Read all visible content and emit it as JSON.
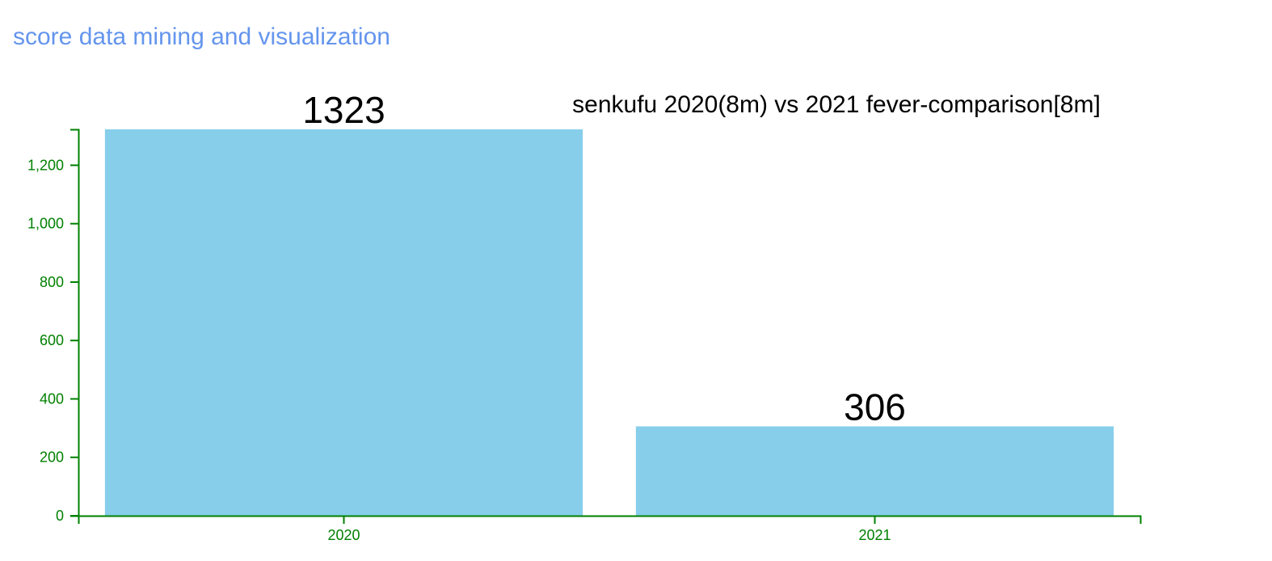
{
  "page": {
    "heading": "score data mining and visualization"
  },
  "colors": {
    "heading": "#6495ed",
    "bar": "#87ceeb",
    "axis": "#008000",
    "text": "#000000"
  },
  "chart_data": {
    "type": "bar",
    "title": "senkufu 2020(8m) vs 2021 fever-comparison[8m]",
    "categories": [
      "2020",
      "2021"
    ],
    "values": [
      1323,
      306
    ],
    "value_labels": [
      "1323",
      "306"
    ],
    "xlabel": "",
    "ylabel": "",
    "ylim": [
      0,
      1323
    ],
    "yticks": [
      0,
      200,
      400,
      600,
      800,
      1000,
      1200
    ],
    "ytick_labels": [
      "0",
      "200",
      "400",
      "600",
      "800",
      "1,000",
      "1,200"
    ],
    "grid": false,
    "legend": "none"
  }
}
